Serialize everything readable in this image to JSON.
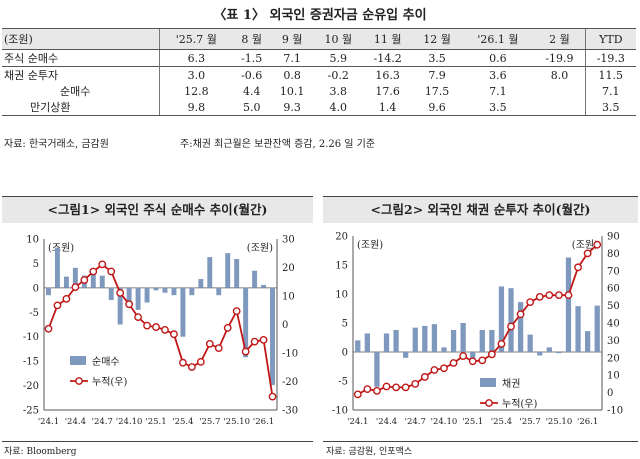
{
  "table": {
    "title": "〈표 1〉 외국인 증권자금 순유입 추이",
    "unit_label": "(조원)",
    "columns": [
      "'25.7 월",
      "8 월",
      "9 월",
      "10 월",
      "11 월",
      "12 월",
      "'26.1 월",
      "2 월",
      "YTD"
    ],
    "rows": [
      {
        "label": "주식 순매수",
        "values": [
          "6.3",
          "-1.5",
          "7.1",
          "5.9",
          "-14.2",
          "3.5",
          "0.6",
          "-19.9",
          "-19.3"
        ]
      },
      {
        "label": "채권 순투자",
        "values": [
          "3.0",
          "-0.6",
          "0.8",
          "-0.2",
          "16.3",
          "7.9",
          "3.6",
          "8.0",
          "11.5"
        ]
      },
      {
        "label": "순매수",
        "values": [
          "12.8",
          "4.4",
          "10.1",
          "3.8",
          "17.6",
          "17.5",
          "7.1",
          "",
          "7.1"
        ]
      },
      {
        "label": "만기상환",
        "values": [
          "9.8",
          "5.0",
          "9.3",
          "4.0",
          "1.4",
          "9.6",
          "3.5",
          "",
          "3.5"
        ]
      }
    ],
    "source": "자료: 한국거래소, 금감원",
    "note": "주:채권 최근월은 보관잔액 증감, 2.26 일 기준"
  },
  "chart_data": [
    {
      "type": "bar",
      "title": "<그림1> 외국인 주식 순매수 추이(월간)",
      "x": [
        "'24.1",
        "'24.2",
        "'24.3",
        "'24.4",
        "'24.5",
        "'24.6",
        "'24.7",
        "'24.8",
        "'24.9",
        "'24.10",
        "'24.11",
        "'24.12",
        "'25.1",
        "'25.2",
        "'25.3",
        "'25.4",
        "'25.5",
        "'25.6",
        "'25.7",
        "'25.8",
        "'25.9",
        "'25.10",
        "'25.11",
        "'25.12",
        "'26.1",
        "'26.2"
      ],
      "xticks": [
        "'24.1",
        "'24.4",
        "'24.7",
        "'24.10",
        "'25.1",
        "'25.4",
        "'25.7",
        "'25.10",
        "'26.1"
      ],
      "y_left": {
        "label": "(조원)",
        "lim": [
          -25,
          10
        ],
        "ticks": [
          10,
          5,
          0,
          -5,
          -10,
          -15,
          -20,
          -25
        ]
      },
      "y_right": {
        "label": "(조원)",
        "lim": [
          -30,
          30
        ],
        "ticks": [
          30,
          20,
          10,
          0,
          -10,
          -20,
          -30
        ]
      },
      "series": [
        {
          "name": "순매수",
          "axis": "left",
          "kind": "bar",
          "color": "#7f98bd",
          "values": [
            -1.5,
            8.2,
            2.3,
            4.1,
            2.5,
            3.0,
            2.5,
            -2.5,
            -7.5,
            -4.0,
            -4.5,
            -3.0,
            -0.5,
            -1.0,
            -1.5,
            -10.0,
            -1.5,
            1.8,
            6.3,
            -1.5,
            7.1,
            5.9,
            -14.2,
            3.5,
            0.6,
            -19.9
          ]
        },
        {
          "name": "누적(우)",
          "axis": "right",
          "kind": "line",
          "color": "#c01818",
          "values": [
            -1.5,
            6.7,
            9.0,
            13.1,
            15.6,
            18.6,
            21.1,
            18.6,
            11.1,
            7.1,
            2.6,
            -0.4,
            -0.9,
            -1.9,
            -3.4,
            -13.4,
            -14.9,
            -13.1,
            -6.8,
            -8.3,
            -1.2,
            4.7,
            -9.5,
            -6.0,
            -5.4,
            -25.3
          ]
        }
      ]
    },
    {
      "type": "bar",
      "title": "<그림2> 외국인 채권 순투자 추이(월간)",
      "x": [
        "'24.1",
        "'24.2",
        "'24.3",
        "'24.4",
        "'24.5",
        "'24.6",
        "'24.7",
        "'24.8",
        "'24.9",
        "'24.10",
        "'24.11",
        "'24.12",
        "'25.1",
        "'25.2",
        "'25.3",
        "'25.4",
        "'25.5",
        "'25.6",
        "'25.7",
        "'25.8",
        "'25.9",
        "'25.10",
        "'25.11",
        "'25.12",
        "'26.1",
        "'26.2"
      ],
      "xticks": [
        "'24.1",
        "'24.4",
        "'24.7",
        "'24.10",
        "'25.1",
        "'25.4",
        "'25.7",
        "'25.10",
        "'26.1"
      ],
      "y_left": {
        "label": "(조원)",
        "lim": [
          -10,
          20
        ],
        "ticks": [
          20,
          15,
          10,
          5,
          0,
          -5,
          -10
        ]
      },
      "y_right": {
        "label": "(조원)",
        "lim": [
          -10,
          90
        ],
        "ticks": [
          90,
          80,
          70,
          60,
          50,
          40,
          30,
          20,
          10,
          0,
          -10
        ]
      },
      "series": [
        {
          "name": "채권",
          "axis": "left",
          "kind": "bar",
          "color": "#7f98bd",
          "values": [
            2.0,
            3.2,
            -6.0,
            3.2,
            3.8,
            -1.0,
            4.2,
            4.5,
            4.8,
            0.8,
            3.8,
            5.0,
            -2.0,
            3.8,
            3.8,
            11.3,
            11.0,
            8.6,
            3.0,
            -0.6,
            0.8,
            -0.2,
            16.3,
            7.9,
            3.6,
            8.0
          ]
        },
        {
          "name": "누적(우)",
          "axis": "right",
          "kind": "line",
          "color": "#c01818",
          "values": [
            -1.0,
            2.0,
            1.0,
            3.5,
            3.0,
            3.0,
            5.0,
            9.0,
            13.0,
            14.0,
            17.0,
            21.0,
            18.0,
            18.5,
            22.0,
            28.0,
            38.0,
            45.0,
            52.0,
            55.0,
            56.0,
            56.0,
            56.0,
            72.0,
            80.0,
            85.0
          ]
        }
      ]
    }
  ],
  "sources": {
    "left": "자료: Bloomberg",
    "right": "자료: 금감원, 인포맥스"
  }
}
